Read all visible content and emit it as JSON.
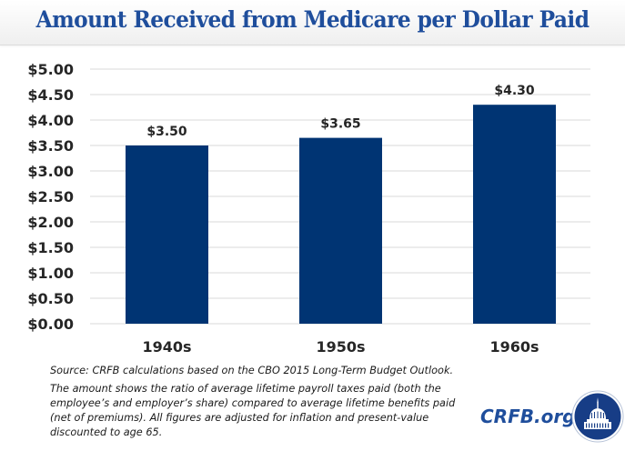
{
  "header": {
    "title": "Amount Received from Medicare per Dollar Paid"
  },
  "chart_data": {
    "type": "bar",
    "title": "Amount Received from Medicare per Dollar Paid",
    "categories": [
      "1940s",
      "1950s",
      "1960s"
    ],
    "values": [
      3.5,
      3.65,
      4.3
    ],
    "data_labels": [
      "$3.50",
      "$3.65",
      "$4.30"
    ],
    "xlabel": "",
    "ylabel": "",
    "ylim": [
      0,
      5
    ],
    "yticks": [
      0,
      0.5,
      1,
      1.5,
      2,
      2.5,
      3,
      3.5,
      4,
      4.5,
      5
    ],
    "ytick_labels": [
      "$0.00",
      "$0.50",
      "$1.00",
      "$1.50",
      "$2.00",
      "$2.50",
      "$3.00",
      "$3.50",
      "$4.00",
      "$4.50",
      "$5.00"
    ],
    "grid": true,
    "legend": "none",
    "bar_color": "#003473"
  },
  "notes": {
    "source": "Source: CRFB calculations based on the CBO 2015 Long-Term Budget Outlook.",
    "explanation": "The amount shows the ratio of average lifetime payroll taxes paid (both the employee’s and employer’s share) compared to average lifetime benefits paid (net of premiums). All figures are adjusted for inflation and present-value discounted to age 65."
  },
  "brand": {
    "text": "CRFB.org",
    "logo": "capitol-dome-logo-icon",
    "color": "#1f4e9c"
  }
}
